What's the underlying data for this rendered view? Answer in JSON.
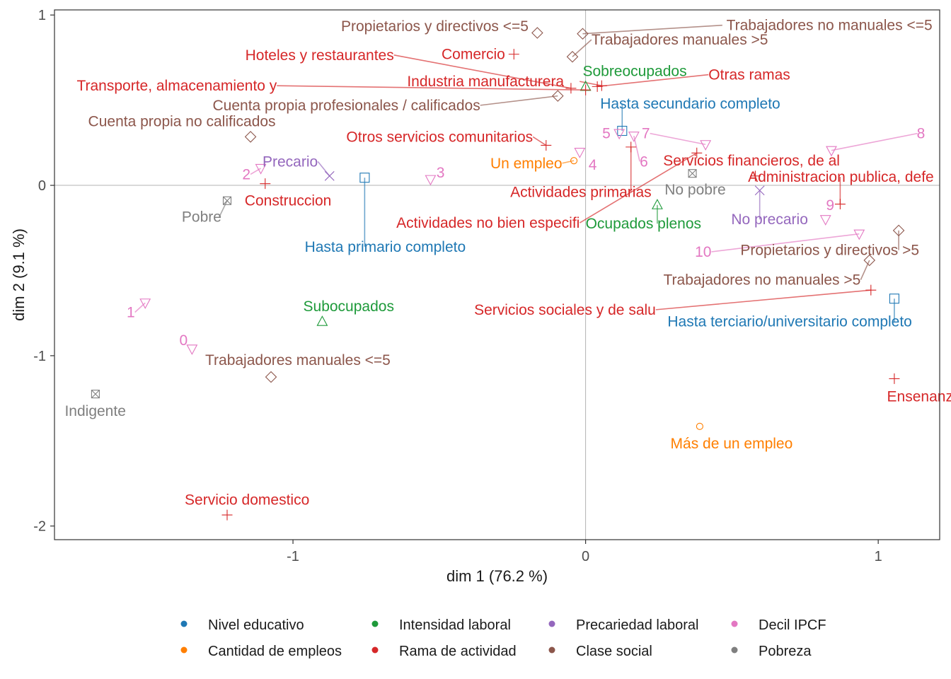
{
  "chart_data": {
    "type": "scatter",
    "xlabel": "dim 1 (76.2 %)",
    "ylabel": "dim 2 (9.1 %)",
    "xlim": [
      -1.815,
      1.21
    ],
    "ylim": [
      -2.08,
      1.03
    ],
    "x_ticks": [
      {
        "value": -1,
        "label": "-1"
      },
      {
        "value": 0,
        "label": "0"
      },
      {
        "value": 1,
        "label": "1"
      }
    ],
    "y_ticks": [
      {
        "value": 1,
        "label": "1"
      },
      {
        "value": 0,
        "label": "0"
      },
      {
        "value": -1,
        "label": "-1"
      },
      {
        "value": -2,
        "label": "-2"
      }
    ],
    "reference_lines": {
      "x": 0,
      "y": 0
    },
    "grid": false,
    "legend_position": "bottom",
    "groups": [
      {
        "name": "Nivel educativo",
        "color": "#1f78b4",
        "shape": "square"
      },
      {
        "name": "Cantidad de empleos",
        "color": "#ff7f00",
        "shape": "circle"
      },
      {
        "name": "Intensidad laboral",
        "color": "#1e9a3a",
        "shape": "triangle-up"
      },
      {
        "name": "Rama de actividad",
        "color": "#d62728",
        "shape": "plus"
      },
      {
        "name": "Precariedad laboral",
        "color": "#9467bd",
        "shape": "cross"
      },
      {
        "name": "Clase social",
        "color": "#8c564b",
        "shape": "diamond"
      },
      {
        "name": "Decil IPCF",
        "color": "#e377c2",
        "shape": "triangle-down"
      },
      {
        "name": "Pobreza",
        "color": "#7f7f7f",
        "shape": "square-cross"
      }
    ],
    "points": [
      {
        "group": "Nivel educativo",
        "label": "Hasta primario completo",
        "x": -0.755,
        "y": 0.045,
        "lx": -0.96,
        "ly": -0.36,
        "anchor": "start"
      },
      {
        "group": "Nivel educativo",
        "label": "Hasta secundario completo",
        "x": 0.125,
        "y": 0.32,
        "lx": 0.05,
        "ly": 0.48,
        "anchor": "start"
      },
      {
        "group": "Nivel educativo",
        "label": "Hasta terciario/universitario completo",
        "x": 1.055,
        "y": -0.665,
        "lx": 0.28,
        "ly": -0.8,
        "anchor": "start"
      },
      {
        "group": "Cantidad de empleos",
        "label": "Un empleo",
        "x": -0.04,
        "y": 0.145,
        "lx": -0.08,
        "ly": 0.13,
        "anchor": "end"
      },
      {
        "group": "Cantidad de empleos",
        "label": "Más de un empleo",
        "x": 0.39,
        "y": -1.415,
        "lx": 0.29,
        "ly": -1.515,
        "anchor": "start"
      },
      {
        "group": "Intensidad laboral",
        "label": "Sobreocupados",
        "x": 0.0,
        "y": 0.58,
        "lx": -0.01,
        "ly": 0.67,
        "anchor": "start"
      },
      {
        "group": "Intensidad laboral",
        "label": "Ocupados plenos",
        "x": 0.245,
        "y": -0.115,
        "lx": 0.0,
        "ly": -0.225,
        "anchor": "start"
      },
      {
        "group": "Intensidad laboral",
        "label": "Subocupados",
        "x": -0.9,
        "y": -0.8,
        "lx": -0.965,
        "ly": -0.71,
        "anchor": "start"
      },
      {
        "group": "Rama de actividad",
        "label": "Comercio",
        "x": -0.245,
        "y": 0.77,
        "lx": -0.275,
        "ly": 0.77,
        "anchor": "end"
      },
      {
        "group": "Rama de actividad",
        "label": "Hoteles y restaurantes",
        "x": -0.05,
        "y": 0.57,
        "lx": -0.655,
        "ly": 0.765,
        "anchor": "end"
      },
      {
        "group": "Rama de actividad",
        "label": "Transporte, almacenamiento y",
        "x": 0.0,
        "y": 0.56,
        "lx": -1.055,
        "ly": 0.585,
        "anchor": "end"
      },
      {
        "group": "Rama de actividad",
        "label": "Industria manufacturera",
        "x": 0.055,
        "y": 0.585,
        "lx": -0.61,
        "ly": 0.61,
        "anchor": "start"
      },
      {
        "group": "Rama de actividad",
        "label": "Otras ramas",
        "x": 0.04,
        "y": 0.58,
        "lx": 0.42,
        "ly": 0.65,
        "anchor": "start"
      },
      {
        "group": "Rama de actividad",
        "label": "Otros servicios comunitarios",
        "x": -0.135,
        "y": 0.235,
        "lx": -0.18,
        "ly": 0.285,
        "anchor": "end"
      },
      {
        "group": "Rama de actividad",
        "label": "Actividades primarias",
        "x": 0.155,
        "y": 0.225,
        "lx": 0.225,
        "ly": -0.04,
        "anchor": "end"
      },
      {
        "group": "Rama de actividad",
        "label": "Construccion",
        "x": -1.095,
        "y": 0.01,
        "lx": -1.165,
        "ly": -0.09,
        "anchor": "start"
      },
      {
        "group": "Rama de actividad",
        "label": "Actividades no bien especifi",
        "x": 0.38,
        "y": 0.19,
        "lx": -0.02,
        "ly": -0.22,
        "anchor": "end"
      },
      {
        "group": "Rama de actividad",
        "label": "Servicios financieros, de al",
        "x": 0.58,
        "y": 0.055,
        "lx": 0.265,
        "ly": 0.145,
        "anchor": "start"
      },
      {
        "group": "Rama de actividad",
        "label": "Administracion publica, defe",
        "x": 0.87,
        "y": -0.11,
        "lx": 1.19,
        "ly": 0.05,
        "anchor": "end"
      },
      {
        "group": "Rama de actividad",
        "label": "Servicios sociales y de salu",
        "x": 0.975,
        "y": -0.615,
        "lx": 0.24,
        "ly": -0.73,
        "anchor": "end"
      },
      {
        "group": "Rama de actividad",
        "label": "Ensenanza",
        "x": 1.055,
        "y": -1.135,
        "lx": 1.03,
        "ly": -1.24,
        "anchor": "start"
      },
      {
        "group": "Rama de actividad",
        "label": "Servicio domestico",
        "x": -1.225,
        "y": -1.935,
        "lx": -1.37,
        "ly": -1.845,
        "anchor": "start"
      },
      {
        "group": "Precariedad laboral",
        "label": "Precario",
        "x": -0.875,
        "y": 0.055,
        "lx": -0.915,
        "ly": 0.14,
        "anchor": "end"
      },
      {
        "group": "Precariedad laboral",
        "label": "No precario",
        "x": 0.595,
        "y": -0.03,
        "lx": 0.76,
        "ly": -0.2,
        "anchor": "end"
      },
      {
        "group": "Clase social",
        "label": "Propietarios y directivos <=5",
        "x": -0.165,
        "y": 0.895,
        "lx": -0.195,
        "ly": 0.935,
        "anchor": "end"
      },
      {
        "group": "Clase social",
        "label": "Trabajadores no manuales <=5",
        "x": -0.01,
        "y": 0.89,
        "lx": 1.185,
        "ly": 0.94,
        "anchor": "end"
      },
      {
        "group": "Clase social",
        "label": "Trabajadores manuales >5",
        "x": -0.045,
        "y": 0.755,
        "lx": 0.02,
        "ly": 0.855,
        "anchor": "start"
      },
      {
        "group": "Clase social",
        "label": "Cuenta propia profesionales / calificados",
        "x": -0.095,
        "y": 0.525,
        "lx": -0.36,
        "ly": 0.47,
        "anchor": "end"
      },
      {
        "group": "Clase social",
        "label": "Cuenta propia no calificados",
        "x": -1.145,
        "y": 0.285,
        "lx": -1.7,
        "ly": 0.375,
        "anchor": "start"
      },
      {
        "group": "Clase social",
        "label": "Propietarios y directivos >5",
        "x": 1.07,
        "y": -0.265,
        "lx": 1.14,
        "ly": -0.38,
        "anchor": "end"
      },
      {
        "group": "Clase social",
        "label": "Trabajadores no manuales >5",
        "x": 0.97,
        "y": -0.44,
        "lx": 0.94,
        "ly": -0.555,
        "anchor": "end"
      },
      {
        "group": "Clase social",
        "label": "Trabajadores manuales <=5",
        "x": -1.075,
        "y": -1.125,
        "lx": -1.3,
        "ly": -1.025,
        "anchor": "start"
      },
      {
        "group": "Decil IPCF",
        "label": "0",
        "x": -1.345,
        "y": -0.96,
        "lx": -1.36,
        "ly": -0.91,
        "anchor": "end"
      },
      {
        "group": "Decil IPCF",
        "label": "1",
        "x": -1.505,
        "y": -0.69,
        "lx": -1.54,
        "ly": -0.745,
        "anchor": "end"
      },
      {
        "group": "Decil IPCF",
        "label": "2",
        "x": -1.11,
        "y": 0.1,
        "lx": -1.145,
        "ly": 0.065,
        "anchor": "end"
      },
      {
        "group": "Decil IPCF",
        "label": "3",
        "x": -0.53,
        "y": 0.035,
        "lx": -0.51,
        "ly": 0.075,
        "anchor": "start"
      },
      {
        "group": "Decil IPCF",
        "label": "4",
        "x": -0.02,
        "y": 0.195,
        "lx": 0.01,
        "ly": 0.12,
        "anchor": "start"
      },
      {
        "group": "Decil IPCF",
        "label": "5",
        "x": 0.115,
        "y": 0.305,
        "lx": 0.085,
        "ly": 0.305,
        "anchor": "end"
      },
      {
        "group": "Decil IPCF",
        "label": "6",
        "x": 0.165,
        "y": 0.29,
        "lx": 0.185,
        "ly": 0.14,
        "anchor": "start"
      },
      {
        "group": "Decil IPCF",
        "label": "7",
        "x": 0.41,
        "y": 0.24,
        "lx": 0.22,
        "ly": 0.305,
        "anchor": "end"
      },
      {
        "group": "Decil IPCF",
        "label": "8",
        "x": 0.84,
        "y": 0.205,
        "lx": 1.16,
        "ly": 0.305,
        "anchor": "end"
      },
      {
        "group": "Decil IPCF",
        "label": "9",
        "x": 0.82,
        "y": -0.2,
        "lx": 0.85,
        "ly": -0.115,
        "anchor": "end"
      },
      {
        "group": "Decil IPCF",
        "label": "10",
        "x": 0.935,
        "y": -0.285,
        "lx": 0.43,
        "ly": -0.39,
        "anchor": "end"
      },
      {
        "group": "Pobreza",
        "label": "No pobre",
        "x": 0.365,
        "y": 0.07,
        "lx": 0.27,
        "ly": -0.025,
        "anchor": "start"
      },
      {
        "group": "Pobreza",
        "label": "Pobre",
        "x": -1.225,
        "y": -0.09,
        "lx": -1.38,
        "ly": -0.185,
        "anchor": "start"
      },
      {
        "group": "Pobreza",
        "label": "Indigente",
        "x": -1.675,
        "y": -1.225,
        "lx": -1.78,
        "ly": -1.325,
        "anchor": "start"
      }
    ],
    "legend": [
      {
        "name": "Nivel educativo",
        "color": "#1f78b4"
      },
      {
        "name": "Intensidad laboral",
        "color": "#1e9a3a"
      },
      {
        "name": "Precariedad laboral",
        "color": "#9467bd"
      },
      {
        "name": "Decil IPCF",
        "color": "#e377c2"
      },
      {
        "name": "Cantidad de empleos",
        "color": "#ff7f00"
      },
      {
        "name": "Rama de actividad",
        "color": "#d62728"
      },
      {
        "name": "Clase social",
        "color": "#8c564b"
      },
      {
        "name": "Pobreza",
        "color": "#7f7f7f"
      }
    ]
  }
}
